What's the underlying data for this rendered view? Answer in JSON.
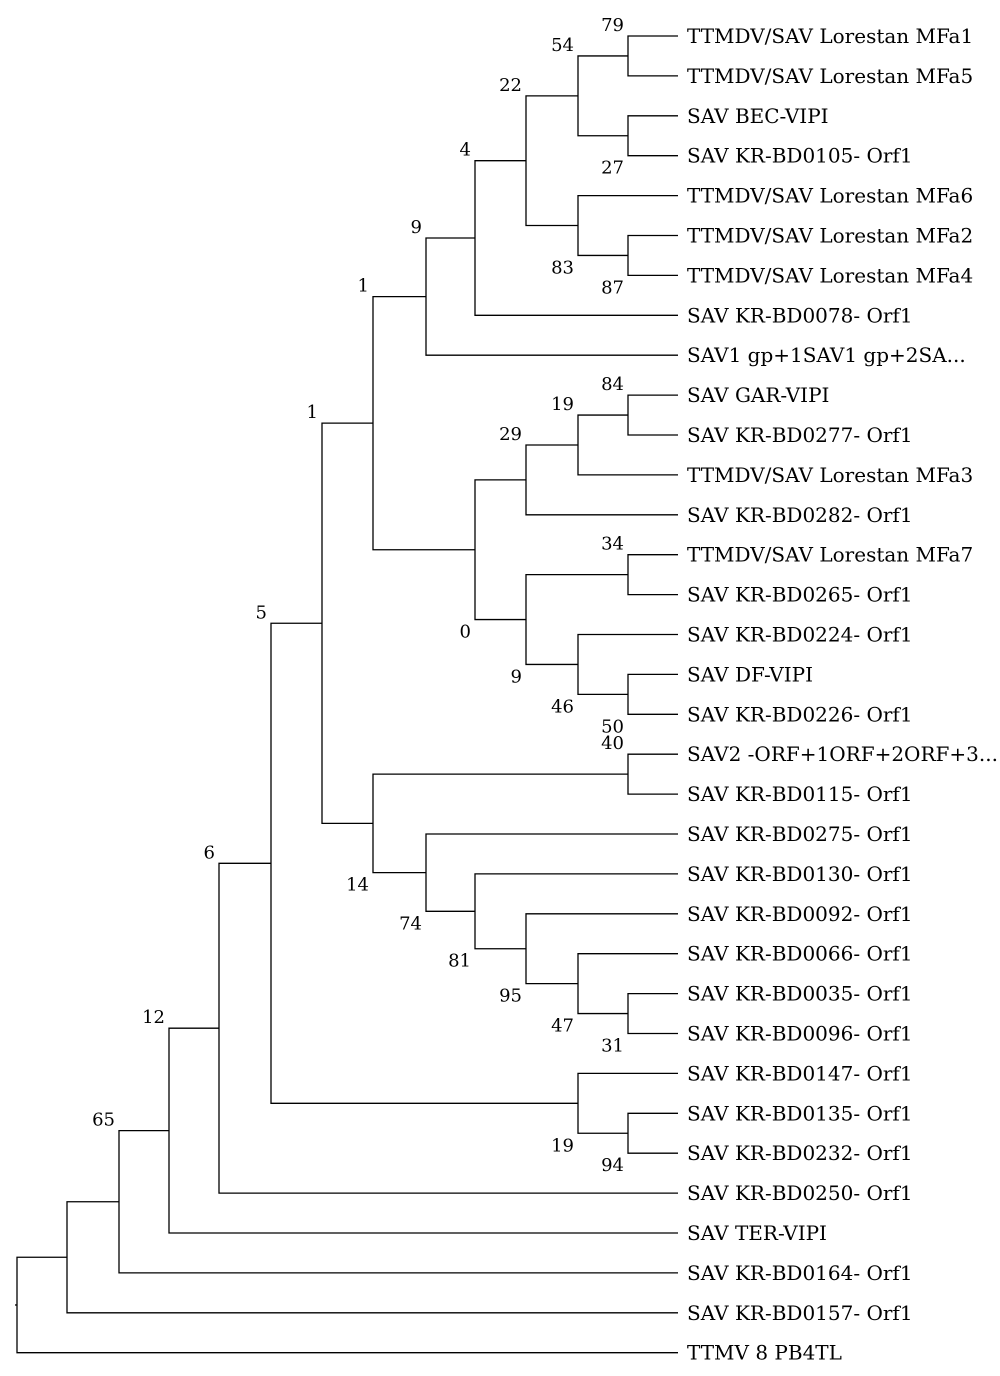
{
  "tree": {
    "tips": [
      {
        "id": "t1",
        "label": "TTMDV/SAV Lorestan MFa1"
      },
      {
        "id": "t2",
        "label": "TTMDV/SAV Lorestan MFa5"
      },
      {
        "id": "t3",
        "label": "SAV BEC-VIPI"
      },
      {
        "id": "t4",
        "label": "SAV KR-BD0105- Orf1"
      },
      {
        "id": "t5",
        "label": "TTMDV/SAV Lorestan MFa6"
      },
      {
        "id": "t6",
        "label": "TTMDV/SAV Lorestan MFa2"
      },
      {
        "id": "t7",
        "label": "TTMDV/SAV Lorestan MFa4"
      },
      {
        "id": "t8",
        "label": "SAV KR-BD0078- Orf1"
      },
      {
        "id": "t9",
        "label": "SAV1 gp+1SAV1 gp+2SA..."
      },
      {
        "id": "t10",
        "label": "SAV GAR-VIPI"
      },
      {
        "id": "t11",
        "label": "SAV KR-BD0277- Orf1"
      },
      {
        "id": "t12",
        "label": "TTMDV/SAV Lorestan MFa3"
      },
      {
        "id": "t13",
        "label": "SAV KR-BD0282- Orf1"
      },
      {
        "id": "t14",
        "label": "TTMDV/SAV Lorestan MFa7"
      },
      {
        "id": "t15",
        "label": "SAV KR-BD0265- Orf1"
      },
      {
        "id": "t16",
        "label": "SAV KR-BD0224- Orf1"
      },
      {
        "id": "t17",
        "label": "SAV DF-VIPI"
      },
      {
        "id": "t18",
        "label": "SAV KR-BD0226- Orf1"
      },
      {
        "id": "t19",
        "label": "SAV2 -ORF+1ORF+2ORF+3..."
      },
      {
        "id": "t20",
        "label": "SAV KR-BD0115- Orf1"
      },
      {
        "id": "t21",
        "label": "SAV KR-BD0275- Orf1"
      },
      {
        "id": "t22",
        "label": "SAV KR-BD0130- Orf1"
      },
      {
        "id": "t23",
        "label": "SAV KR-BD0092- Orf1"
      },
      {
        "id": "t24",
        "label": "SAV KR-BD0066- Orf1"
      },
      {
        "id": "t25",
        "label": "SAV KR-BD0035- Orf1"
      },
      {
        "id": "t26",
        "label": "SAV KR-BD0096- Orf1"
      },
      {
        "id": "t27",
        "label": "SAV KR-BD0147- Orf1"
      },
      {
        "id": "t28",
        "label": "SAV KR-BD0135- Orf1"
      },
      {
        "id": "t29",
        "label": "SAV KR-BD0232- Orf1"
      },
      {
        "id": "t30",
        "label": "SAV KR-BD0250- Orf1"
      },
      {
        "id": "t31",
        "label": "SAV TER-VIPI"
      },
      {
        "id": "t32",
        "label": "SAV KR-BD0164- Orf1"
      },
      {
        "id": "t33",
        "label": "SAV KR-BD0157- Orf1"
      },
      {
        "id": "t34",
        "label": "TTMV 8 PB4TL"
      }
    ],
    "clades": [
      {
        "id": "n1",
        "children": [
          "t1",
          "t2"
        ],
        "support": "79"
      },
      {
        "id": "n2",
        "children": [
          "t3",
          "t4"
        ],
        "support": "27"
      },
      {
        "id": "n3",
        "children": [
          "n1",
          "n2"
        ],
        "support": "54"
      },
      {
        "id": "n4",
        "children": [
          "t6",
          "t7"
        ],
        "support": "87"
      },
      {
        "id": "n5",
        "children": [
          "t5",
          "n4"
        ],
        "support": "83"
      },
      {
        "id": "n6",
        "children": [
          "n3",
          "n5"
        ],
        "support": "22"
      },
      {
        "id": "n7",
        "children": [
          "n6",
          "t8"
        ],
        "support": "4"
      },
      {
        "id": "n8",
        "children": [
          "n7",
          "t9"
        ],
        "support": "9"
      },
      {
        "id": "n9",
        "children": [
          "t10",
          "t11"
        ],
        "support": "84"
      },
      {
        "id": "n10",
        "children": [
          "n9",
          "t12"
        ],
        "support": "19"
      },
      {
        "id": "n11",
        "children": [
          "n10",
          "t13"
        ],
        "support": "29"
      },
      {
        "id": "n12",
        "children": [
          "t14",
          "t15"
        ],
        "support": "34"
      },
      {
        "id": "n13",
        "children": [
          "t17",
          "t18"
        ],
        "support": "50"
      },
      {
        "id": "n14",
        "children": [
          "t16",
          "n13"
        ],
        "support": "46"
      },
      {
        "id": "n15",
        "children": [
          "n12",
          "n14"
        ],
        "support": "9"
      },
      {
        "id": "n16",
        "children": [
          "n11",
          "n15"
        ],
        "support": "0"
      },
      {
        "id": "n17",
        "children": [
          "n8",
          "n16"
        ],
        "support": "1"
      },
      {
        "id": "n18",
        "children": [
          "t19",
          "t20"
        ],
        "support": "40"
      },
      {
        "id": "n19",
        "children": [
          "t25",
          "t26"
        ],
        "support": "31"
      },
      {
        "id": "n20",
        "children": [
          "t24",
          "n19"
        ],
        "support": "47"
      },
      {
        "id": "n21",
        "children": [
          "t23",
          "n20"
        ],
        "support": "95"
      },
      {
        "id": "n22",
        "children": [
          "t22",
          "n21"
        ],
        "support": "81"
      },
      {
        "id": "n23",
        "children": [
          "t21",
          "n22"
        ],
        "support": "74"
      },
      {
        "id": "n24",
        "children": [
          "n18",
          "n23"
        ],
        "support": "14"
      },
      {
        "id": "n25",
        "children": [
          "n17",
          "n24"
        ],
        "support": "1"
      },
      {
        "id": "n26",
        "children": [
          "t28",
          "t29"
        ],
        "support": "94"
      },
      {
        "id": "n27",
        "children": [
          "t27",
          "n26"
        ],
        "support": "19"
      },
      {
        "id": "n28",
        "children": [
          "n25",
          "n27"
        ],
        "support": "5"
      },
      {
        "id": "n29",
        "children": [
          "n28",
          "t30"
        ],
        "support": "6"
      },
      {
        "id": "n30",
        "children": [
          "n29",
          "t31"
        ],
        "support": "12"
      },
      {
        "id": "n31",
        "children": [
          "n30",
          "t32"
        ],
        "support": "65"
      },
      {
        "id": "n32",
        "children": [
          "n31",
          "t33"
        ],
        "support": ""
      },
      {
        "id": "root",
        "children": [
          "n32",
          "t34"
        ],
        "support": ""
      }
    ],
    "root": "root"
  }
}
